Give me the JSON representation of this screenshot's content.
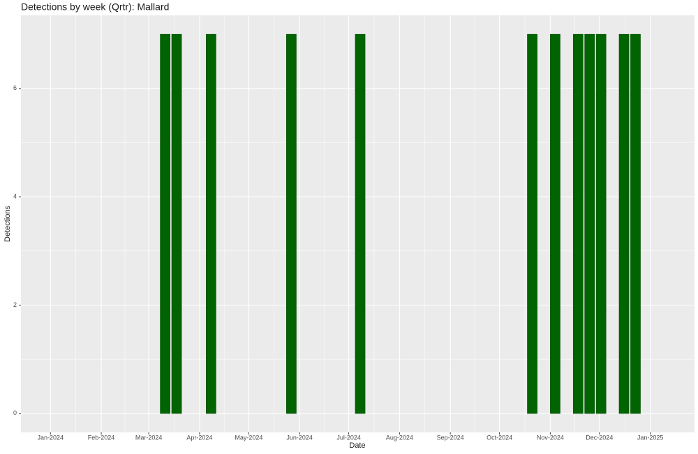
{
  "chart_data": {
    "type": "bar",
    "title": "Detections by week (Qrtr): Mallard",
    "x_label": "Date",
    "y_label": "Detections",
    "x": [
      "2024-03-11",
      "2024-03-18",
      "2024-04-08",
      "2024-05-27",
      "2024-07-08",
      "2024-10-21",
      "2024-11-04",
      "2024-11-18",
      "2024-11-25",
      "2024-12-02",
      "2024-12-16",
      "2024-12-23"
    ],
    "values": [
      7,
      7,
      7,
      7,
      7,
      7,
      7,
      7,
      7,
      7,
      7,
      7
    ],
    "color": "#006400",
    "xlim": [
      "2023-12-14",
      "2025-01-28"
    ],
    "xticks": [
      {
        "value": "2024-01-01",
        "label": "Jan-2024"
      },
      {
        "value": "2024-02-01",
        "label": "Feb-2024"
      },
      {
        "value": "2024-03-01",
        "label": "Mar-2024"
      },
      {
        "value": "2024-04-01",
        "label": "Apr-2024"
      },
      {
        "value": "2024-05-01",
        "label": "May-2024"
      },
      {
        "value": "2024-06-01",
        "label": "Jun-2024"
      },
      {
        "value": "2024-07-01",
        "label": "Jul-2024"
      },
      {
        "value": "2024-08-01",
        "label": "Aug-2024"
      },
      {
        "value": "2024-09-01",
        "label": "Sep-2024"
      },
      {
        "value": "2024-10-01",
        "label": "Oct-2024"
      },
      {
        "value": "2024-11-01",
        "label": "Nov-2024"
      },
      {
        "value": "2024-12-01",
        "label": "Dec-2024"
      },
      {
        "value": "2025-01-01",
        "label": "Jan-2025"
      }
    ],
    "ylim": [
      -0.35,
      7.35
    ],
    "yticks": [
      0,
      2,
      4,
      6
    ],
    "grid": true
  }
}
